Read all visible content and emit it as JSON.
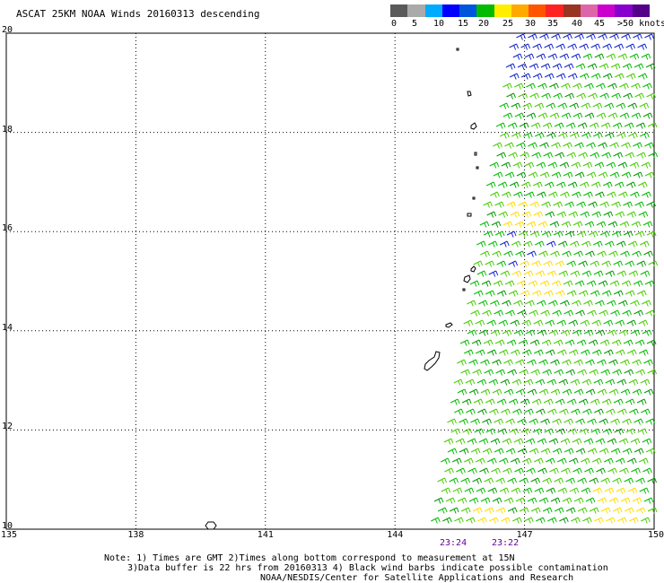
{
  "title": "ASCAT 25KM NOAA Winds 20160313 descending",
  "colorbar": {
    "colors": [
      "#5a5a5a",
      "#aaaaaa",
      "#00aaff",
      "#0000ff",
      "#0055dd",
      "#00bb00",
      "#ffee00",
      "#ffaa00",
      "#ff5500",
      "#ff2222",
      "#993322",
      "#dd66aa",
      "#cc00cc",
      "#8800cc",
      "#550088"
    ],
    "labels": [
      "0",
      "5",
      "10",
      "15",
      "20",
      "25",
      "30",
      "35",
      "40",
      "45",
      ">50 knots"
    ]
  },
  "lat_labels": [
    "20",
    "18",
    "16",
    "14",
    "12",
    "10"
  ],
  "lon_labels": [
    "135",
    "138",
    "141",
    "144",
    "147",
    "150"
  ],
  "time_labels": [
    "23:24",
    "23:22"
  ],
  "notes": [
    "Note: 1) Times are GMT 2)Times along bottom correspond to measurement at 15N",
    "3)Data buffer is 22 hrs from 20160313 4) Black wind barbs indicate possible contamination",
    "NOAA/NESDIS/Center for Satellite Applications and Research"
  ],
  "map": {
    "lat_range": [
      10,
      20
    ],
    "lon_range": [
      135,
      150
    ],
    "swath_edge_north_lon": 146.6,
    "swath_edge_south_lon": 144.7
  }
}
